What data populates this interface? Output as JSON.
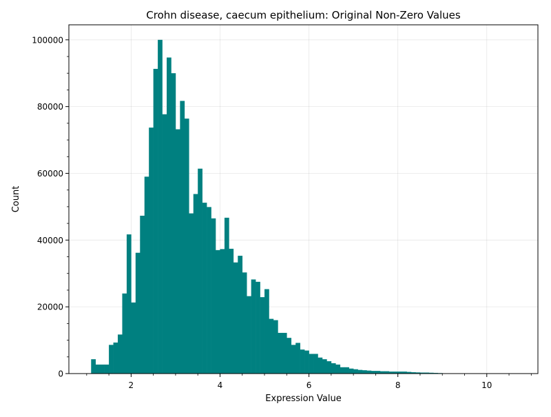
{
  "chart_data": {
    "type": "bar",
    "title": "Crohn disease, caecum epithelium: Original Non-Zero Values",
    "xlabel": "Expression Value",
    "ylabel": "Count",
    "xlim": [
      0.6,
      11.15
    ],
    "ylim": [
      0,
      104500
    ],
    "grid": true,
    "bar_color": "#008080",
    "x_ticks": [
      2,
      4,
      6,
      8,
      10
    ],
    "x_tick_labels": [
      "2",
      "4",
      "6",
      "8",
      "10"
    ],
    "y_ticks": [
      0,
      20000,
      40000,
      60000,
      80000,
      100000
    ],
    "y_tick_labels": [
      "0",
      "20000",
      "40000",
      "60000",
      "80000",
      "100000"
    ],
    "bin_start": 1.1,
    "bin_width": 0.1,
    "values": [
      4300,
      2700,
      2700,
      2700,
      8600,
      9300,
      11700,
      24000,
      41700,
      21300,
      36200,
      47300,
      59000,
      73700,
      91300,
      100000,
      77700,
      94700,
      90000,
      73200,
      81700,
      76400,
      48000,
      53800,
      61400,
      51200,
      49900,
      46500,
      37000,
      37300,
      46700,
      37400,
      33300,
      35300,
      30300,
      23200,
      28200,
      27500,
      22900,
      25300,
      16400,
      16000,
      12200,
      12200,
      10700,
      8600,
      9200,
      7200,
      6900,
      5900,
      5900,
      4800,
      4300,
      3700,
      3100,
      2700,
      1900,
      1900,
      1500,
      1300,
      1100,
      1000,
      900,
      800,
      800,
      700,
      700,
      600,
      600,
      600,
      600,
      500,
      400,
      350,
      300,
      300,
      250,
      200,
      150,
      100,
      80,
      60,
      50,
      40,
      30,
      25,
      20,
      15,
      12,
      10,
      8,
      6,
      5,
      4,
      3,
      2,
      1,
      1,
      1,
      1
    ]
  }
}
